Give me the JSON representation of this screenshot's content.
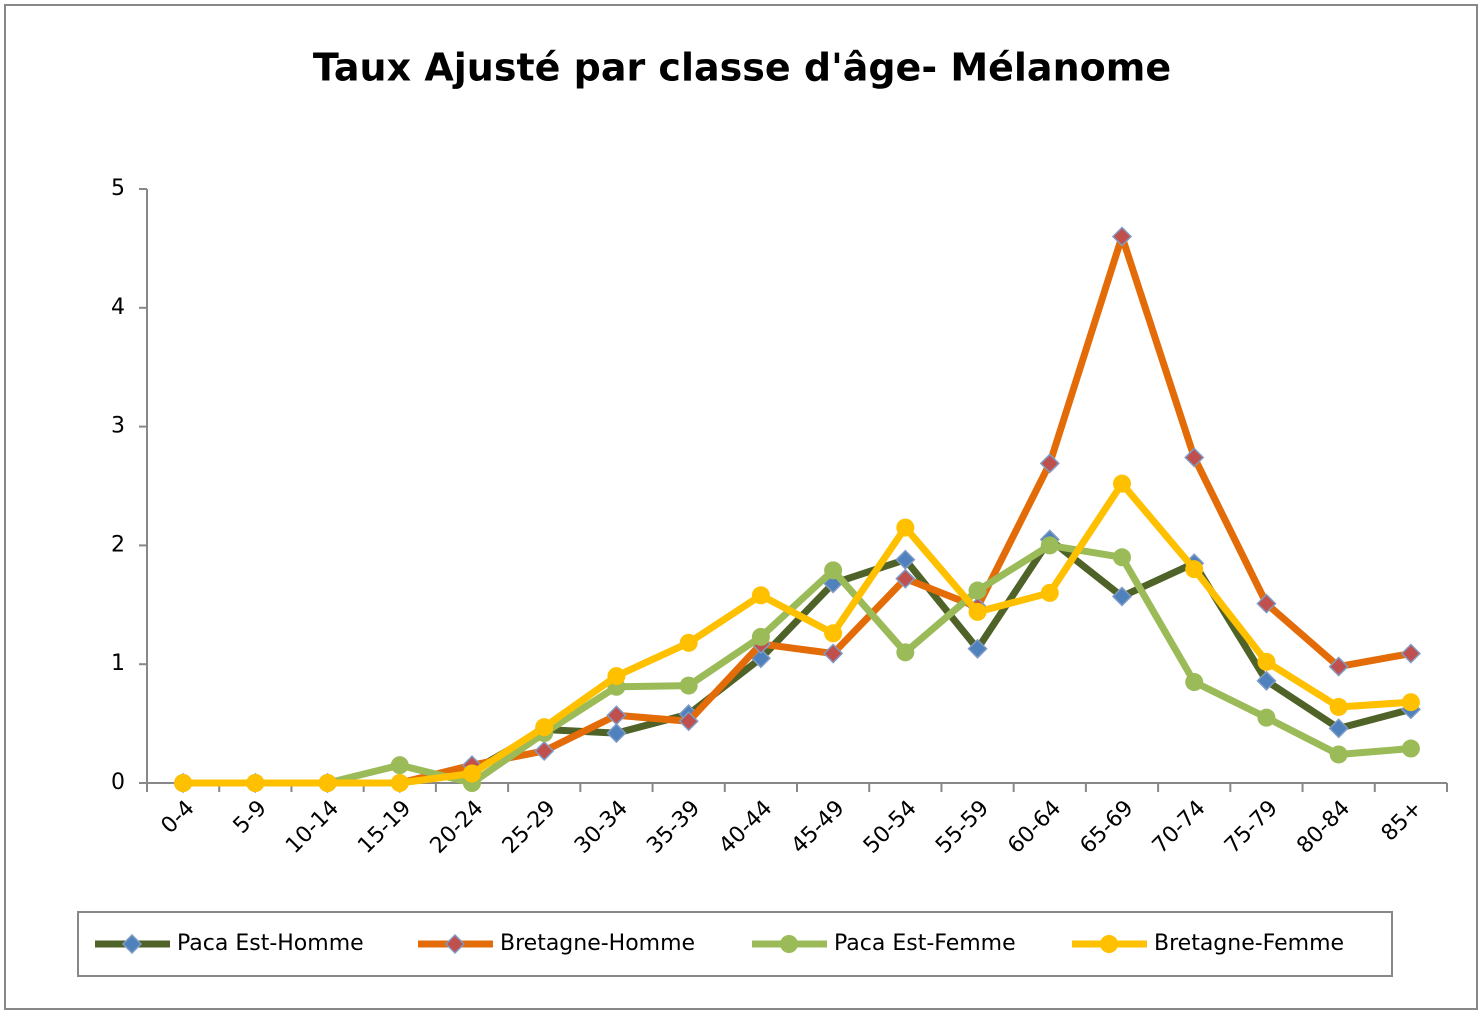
{
  "chart_data": {
    "type": "line",
    "title": "Taux Ajusté par classe d'âge- Mélanome",
    "categories": [
      "0-4",
      "5-9",
      "10-14",
      "15-19",
      "20-24",
      "25-29",
      "30-34",
      "35-39",
      "40-44",
      "45-49",
      "50-54",
      "55-59",
      "60-64",
      "65-69",
      "70-74",
      "75-79",
      "80-84",
      "85+"
    ],
    "series": [
      {
        "name": "Paca Est-Homme",
        "color": "#4f6228",
        "marker": "diamond",
        "marker_color": "#4f81bd",
        "values": [
          0,
          0,
          0,
          0,
          0.1,
          0.45,
          0.42,
          0.58,
          1.05,
          1.68,
          1.88,
          1.13,
          2.05,
          1.57,
          1.85,
          0.86,
          0.46,
          0.62
        ]
      },
      {
        "name": "Bretagne-Homme",
        "color": "#e36c09",
        "marker": "diamond",
        "marker_color": "#c0504d",
        "values": [
          0,
          0,
          0,
          0,
          0.15,
          0.27,
          0.57,
          0.52,
          1.17,
          1.09,
          1.72,
          1.48,
          2.69,
          4.6,
          2.74,
          1.51,
          0.98,
          1.09
        ]
      },
      {
        "name": "Paca Est-Femme",
        "color": "#9bbb59",
        "marker": "circle",
        "marker_color": "#9bbb59",
        "values": [
          0,
          0,
          0,
          0.15,
          0,
          0.42,
          0.81,
          0.82,
          1.23,
          1.79,
          1.1,
          1.62,
          2.0,
          1.9,
          0.85,
          0.55,
          0.24,
          0.29
        ]
      },
      {
        "name": "Bretagne-Femme",
        "color": "#ffc000",
        "marker": "circle",
        "marker_color": "#ffc000",
        "values": [
          0,
          0,
          0,
          0,
          0.08,
          0.47,
          0.9,
          1.18,
          1.58,
          1.26,
          2.15,
          1.44,
          1.6,
          2.52,
          1.8,
          1.02,
          0.64,
          0.68
        ]
      }
    ],
    "ylim": [
      0,
      5
    ],
    "yticks": [
      0,
      1,
      2,
      3,
      4,
      5
    ],
    "grid": false,
    "legend": "bottom"
  }
}
